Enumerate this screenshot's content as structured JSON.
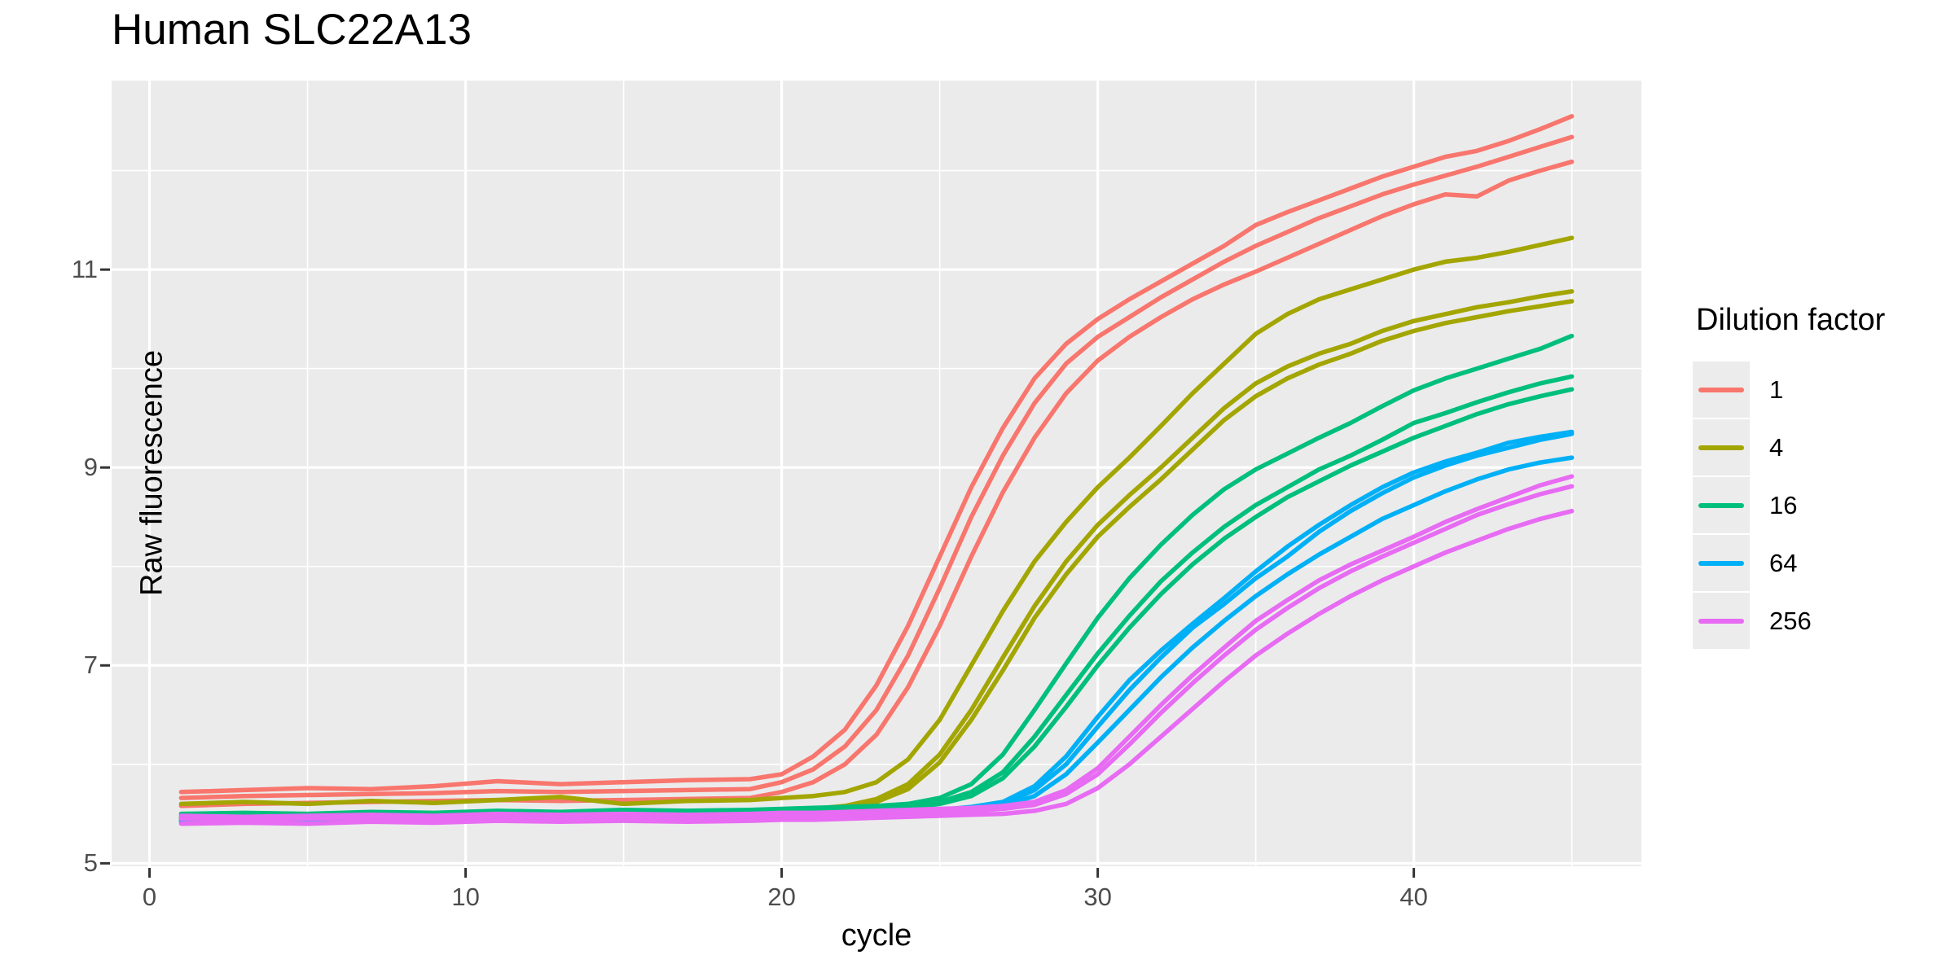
{
  "page": {
    "title": "Human SLC22A13"
  },
  "chart_data": {
    "type": "line",
    "title": "Human SLC22A13",
    "xlabel": "cycle",
    "ylabel": "Raw fluorescence",
    "xlim": [
      -1.2,
      47.2
    ],
    "ylim": [
      4.97,
      12.91
    ],
    "x_ticks": [
      0,
      10,
      20,
      30,
      40
    ],
    "x_minor_ticks": [
      5,
      15,
      25,
      35,
      45
    ],
    "y_ticks": [
      5,
      7,
      9,
      11
    ],
    "y_minor_ticks": [
      6,
      8,
      10,
      12
    ],
    "grid": true,
    "legend_position": "right",
    "legend_title": "Dilution factor",
    "panel_bg": "#EBEBEB",
    "grid_color": "#FFFFFF",
    "tick_color": "#333333",
    "tick_label_color": "#4D4D4D",
    "legend": [
      {
        "label": "1",
        "color": "#F8766D"
      },
      {
        "label": "4",
        "color": "#A3A500"
      },
      {
        "label": "16",
        "color": "#00BF7D"
      },
      {
        "label": "64",
        "color": "#00B0F6"
      },
      {
        "label": "256",
        "color": "#E76BF3"
      }
    ],
    "x": [
      1,
      3,
      5,
      7,
      9,
      11,
      13,
      15,
      17,
      19,
      20,
      21,
      22,
      23,
      24,
      25,
      26,
      27,
      28,
      29,
      30,
      31,
      32,
      33,
      34,
      35,
      36,
      37,
      38,
      39,
      40,
      41,
      42,
      43,
      44,
      45
    ],
    "series": [
      {
        "name": "dilution-1-rep1",
        "dilution": "1",
        "color": "#F8766D",
        "y": [
          5.72,
          5.74,
          5.76,
          5.75,
          5.78,
          5.83,
          5.8,
          5.82,
          5.84,
          5.85,
          5.9,
          6.08,
          6.35,
          6.8,
          7.4,
          8.1,
          8.8,
          9.4,
          9.9,
          10.25,
          10.5,
          10.7,
          10.88,
          11.06,
          11.24,
          11.45,
          11.58,
          11.7,
          11.82,
          11.94,
          12.04,
          12.14,
          12.2,
          12.3,
          12.42,
          12.55
        ]
      },
      {
        "name": "dilution-1-rep2",
        "dilution": "1",
        "color": "#F8766D",
        "y": [
          5.66,
          5.68,
          5.69,
          5.7,
          5.71,
          5.73,
          5.72,
          5.73,
          5.74,
          5.75,
          5.82,
          5.95,
          6.18,
          6.55,
          7.1,
          7.78,
          8.5,
          9.12,
          9.65,
          10.05,
          10.32,
          10.52,
          10.72,
          10.9,
          11.08,
          11.24,
          11.38,
          11.52,
          11.64,
          11.76,
          11.86,
          11.95,
          12.04,
          12.14,
          12.24,
          12.34
        ]
      },
      {
        "name": "dilution-1-rep3",
        "dilution": "1",
        "color": "#F8766D",
        "y": [
          5.58,
          5.6,
          5.61,
          5.62,
          5.63,
          5.64,
          5.63,
          5.64,
          5.65,
          5.66,
          5.72,
          5.82,
          6.0,
          6.3,
          6.78,
          7.4,
          8.1,
          8.75,
          9.3,
          9.75,
          10.08,
          10.32,
          10.52,
          10.7,
          10.85,
          10.98,
          11.12,
          11.26,
          11.4,
          11.54,
          11.66,
          11.76,
          11.74,
          11.9,
          12.0,
          12.09
        ]
      },
      {
        "name": "dilution-4-rep1",
        "dilution": "4",
        "color": "#A3A500",
        "y": [
          5.6,
          5.62,
          5.6,
          5.63,
          5.61,
          5.64,
          5.67,
          5.6,
          5.63,
          5.64,
          5.66,
          5.68,
          5.72,
          5.82,
          6.05,
          6.45,
          7.0,
          7.55,
          8.05,
          8.45,
          8.8,
          9.1,
          9.42,
          9.75,
          10.05,
          10.35,
          10.55,
          10.7,
          10.8,
          10.9,
          11.0,
          11.08,
          11.12,
          11.18,
          11.25,
          11.32
        ]
      },
      {
        "name": "dilution-4-rep2",
        "dilution": "4",
        "color": "#A3A500",
        "y": [
          5.46,
          5.48,
          5.47,
          5.49,
          5.48,
          5.5,
          5.49,
          5.51,
          5.5,
          5.52,
          5.53,
          5.55,
          5.58,
          5.65,
          5.8,
          6.1,
          6.55,
          7.08,
          7.6,
          8.05,
          8.42,
          8.72,
          9.0,
          9.3,
          9.6,
          9.85,
          10.02,
          10.15,
          10.25,
          10.38,
          10.48,
          10.55,
          10.62,
          10.67,
          10.73,
          10.78
        ]
      },
      {
        "name": "dilution-4-rep3",
        "dilution": "4",
        "color": "#A3A500",
        "y": [
          5.44,
          5.45,
          5.46,
          5.47,
          5.46,
          5.48,
          5.47,
          5.49,
          5.48,
          5.5,
          5.51,
          5.53,
          5.56,
          5.62,
          5.75,
          6.02,
          6.45,
          6.95,
          7.48,
          7.92,
          8.3,
          8.6,
          8.88,
          9.18,
          9.48,
          9.72,
          9.9,
          10.04,
          10.15,
          10.28,
          10.38,
          10.46,
          10.52,
          10.58,
          10.63,
          10.68
        ]
      },
      {
        "name": "dilution-16-rep1",
        "dilution": "16",
        "color": "#00BF7D",
        "y": [
          5.5,
          5.51,
          5.5,
          5.52,
          5.51,
          5.53,
          5.52,
          5.54,
          5.53,
          5.54,
          5.55,
          5.56,
          5.57,
          5.58,
          5.6,
          5.66,
          5.8,
          6.1,
          6.55,
          7.02,
          7.48,
          7.88,
          8.22,
          8.52,
          8.78,
          8.98,
          9.14,
          9.3,
          9.45,
          9.62,
          9.78,
          9.9,
          10.0,
          10.1,
          10.2,
          10.33
        ]
      },
      {
        "name": "dilution-16-rep2",
        "dilution": "16",
        "color": "#00BF7D",
        "y": [
          5.48,
          5.49,
          5.48,
          5.5,
          5.49,
          5.51,
          5.5,
          5.52,
          5.51,
          5.52,
          5.53,
          5.54,
          5.55,
          5.56,
          5.58,
          5.62,
          5.72,
          5.92,
          6.28,
          6.7,
          7.12,
          7.5,
          7.85,
          8.14,
          8.4,
          8.62,
          8.8,
          8.98,
          9.12,
          9.28,
          9.45,
          9.55,
          9.66,
          9.76,
          9.85,
          9.92
        ]
      },
      {
        "name": "dilution-16-rep3",
        "dilution": "16",
        "color": "#00BF7D",
        "y": [
          5.46,
          5.47,
          5.46,
          5.48,
          5.47,
          5.49,
          5.48,
          5.5,
          5.49,
          5.5,
          5.51,
          5.52,
          5.53,
          5.54,
          5.56,
          5.6,
          5.68,
          5.86,
          6.18,
          6.58,
          7.0,
          7.38,
          7.72,
          8.02,
          8.28,
          8.5,
          8.7,
          8.86,
          9.02,
          9.16,
          9.3,
          9.42,
          9.54,
          9.64,
          9.72,
          9.79
        ]
      },
      {
        "name": "dilution-64-rep1",
        "dilution": "64",
        "color": "#00B0F6",
        "y": [
          5.44,
          5.45,
          5.44,
          5.46,
          5.45,
          5.47,
          5.46,
          5.47,
          5.46,
          5.47,
          5.48,
          5.49,
          5.5,
          5.51,
          5.52,
          5.54,
          5.57,
          5.62,
          5.78,
          6.08,
          6.48,
          6.85,
          7.15,
          7.42,
          7.68,
          7.95,
          8.2,
          8.42,
          8.62,
          8.8,
          8.95,
          9.06,
          9.15,
          9.25,
          9.31,
          9.36
        ]
      },
      {
        "name": "dilution-64-rep2",
        "dilution": "64",
        "color": "#00B0F6",
        "y": [
          5.43,
          5.44,
          5.43,
          5.45,
          5.44,
          5.46,
          5.45,
          5.46,
          5.45,
          5.46,
          5.47,
          5.48,
          5.49,
          5.5,
          5.51,
          5.53,
          5.56,
          5.6,
          5.74,
          6.0,
          6.38,
          6.75,
          7.08,
          7.38,
          7.62,
          7.88,
          8.1,
          8.35,
          8.56,
          8.74,
          8.9,
          9.02,
          9.12,
          9.2,
          9.28,
          9.34
        ]
      },
      {
        "name": "dilution-64-rep3",
        "dilution": "64",
        "color": "#00B0F6",
        "y": [
          5.42,
          5.43,
          5.42,
          5.44,
          5.43,
          5.45,
          5.44,
          5.45,
          5.44,
          5.45,
          5.46,
          5.47,
          5.48,
          5.49,
          5.5,
          5.52,
          5.54,
          5.58,
          5.68,
          5.9,
          6.22,
          6.55,
          6.88,
          7.18,
          7.45,
          7.7,
          7.92,
          8.12,
          8.3,
          8.48,
          8.62,
          8.76,
          8.88,
          8.98,
          9.05,
          9.1
        ]
      },
      {
        "name": "dilution-256-rep1",
        "dilution": "256",
        "color": "#E76BF3",
        "y": [
          5.48,
          5.47,
          5.48,
          5.49,
          5.48,
          5.5,
          5.49,
          5.5,
          5.49,
          5.5,
          5.51,
          5.51,
          5.52,
          5.53,
          5.54,
          5.55,
          5.56,
          5.58,
          5.62,
          5.74,
          5.96,
          6.28,
          6.6,
          6.9,
          7.18,
          7.45,
          7.66,
          7.86,
          8.02,
          8.16,
          8.3,
          8.45,
          8.58,
          8.7,
          8.82,
          8.91
        ]
      },
      {
        "name": "dilution-256-rep2",
        "dilution": "256",
        "color": "#E76BF3",
        "y": [
          5.45,
          5.44,
          5.45,
          5.46,
          5.45,
          5.47,
          5.46,
          5.47,
          5.46,
          5.47,
          5.48,
          5.48,
          5.49,
          5.5,
          5.51,
          5.52,
          5.53,
          5.55,
          5.59,
          5.7,
          5.9,
          6.2,
          6.52,
          6.82,
          7.1,
          7.36,
          7.58,
          7.78,
          7.95,
          8.1,
          8.24,
          8.38,
          8.52,
          8.63,
          8.73,
          8.81
        ]
      },
      {
        "name": "dilution-256-rep3",
        "dilution": "256",
        "color": "#E76BF3",
        "y": [
          5.4,
          5.41,
          5.4,
          5.42,
          5.41,
          5.43,
          5.42,
          5.43,
          5.42,
          5.43,
          5.44,
          5.44,
          5.45,
          5.46,
          5.47,
          5.48,
          5.49,
          5.5,
          5.53,
          5.6,
          5.76,
          6.0,
          6.28,
          6.56,
          6.84,
          7.1,
          7.32,
          7.52,
          7.7,
          7.86,
          8.0,
          8.14,
          8.26,
          8.38,
          8.48,
          8.56
        ]
      }
    ]
  },
  "layout_note": ""
}
